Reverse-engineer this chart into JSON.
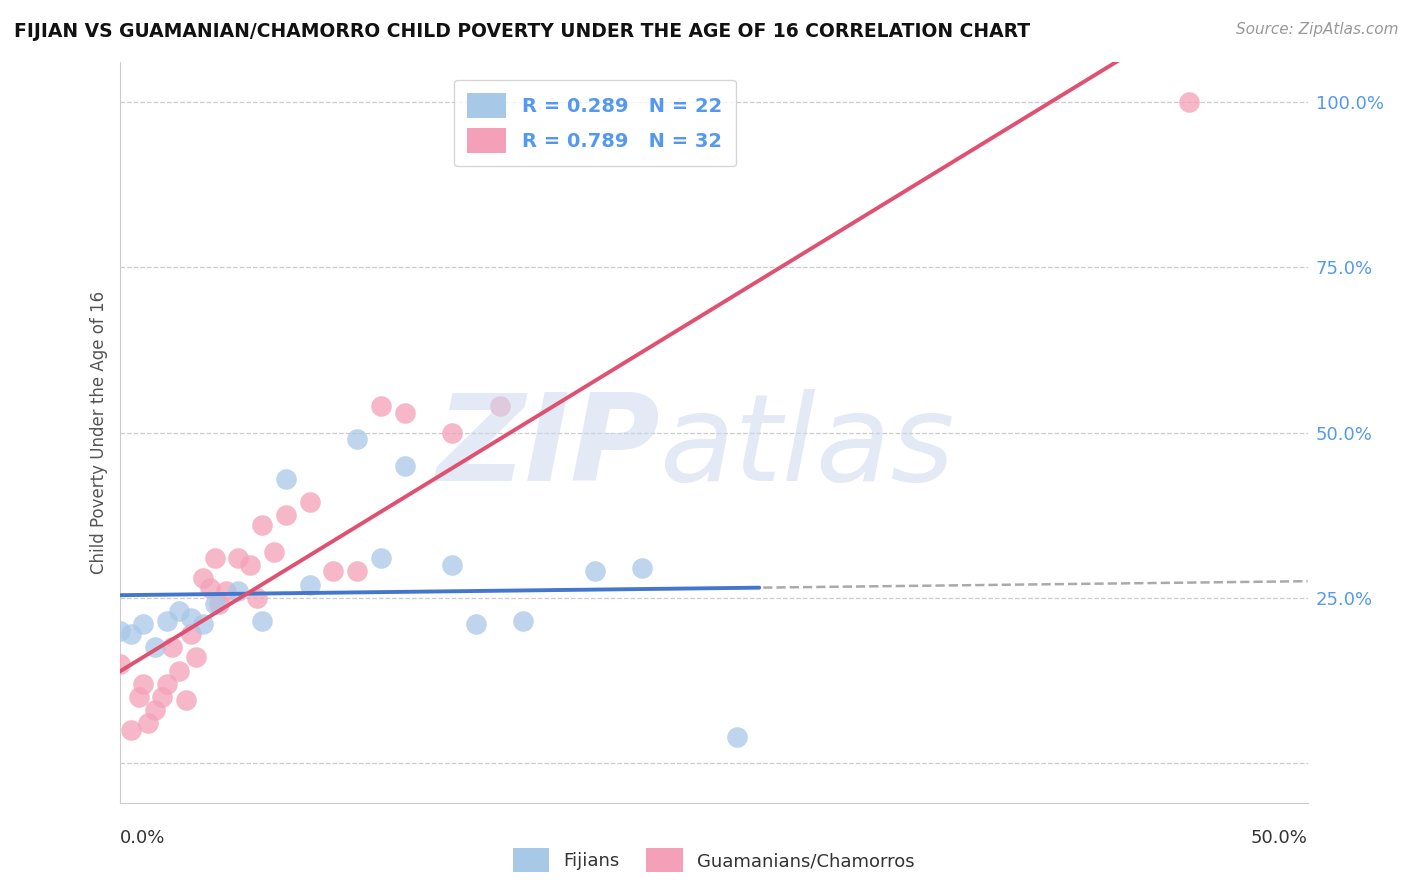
{
  "title": "FIJIAN VS GUAMANIAN/CHAMORRO CHILD POVERTY UNDER THE AGE OF 16 CORRELATION CHART",
  "source": "Source: ZipAtlas.com",
  "ylabel": "Child Poverty Under the Age of 16",
  "xlim": [
    0.0,
    0.5
  ],
  "ylim": [
    -0.06,
    1.06
  ],
  "yticks": [
    0.0,
    0.25,
    0.5,
    0.75,
    1.0
  ],
  "ytick_labels": [
    "",
    "25.0%",
    "50.0%",
    "75.0%",
    "100.0%"
  ],
  "fijian_R": "0.289",
  "fijian_N": "22",
  "guamanian_R": "0.789",
  "guamanian_N": "32",
  "fijian_color": "#a8c8e8",
  "guamanian_color": "#f4a0b8",
  "fijian_line_color": "#4477cc",
  "guamanian_line_color": "#e05070",
  "fijian_x": [
    0.0,
    0.005,
    0.01,
    0.015,
    0.02,
    0.025,
    0.03,
    0.035,
    0.04,
    0.05,
    0.06,
    0.07,
    0.08,
    0.1,
    0.11,
    0.12,
    0.14,
    0.15,
    0.17,
    0.2,
    0.22,
    0.26
  ],
  "fijian_y": [
    0.2,
    0.195,
    0.21,
    0.175,
    0.215,
    0.23,
    0.22,
    0.21,
    0.24,
    0.26,
    0.215,
    0.43,
    0.27,
    0.49,
    0.31,
    0.45,
    0.3,
    0.21,
    0.215,
    0.29,
    0.295,
    0.04
  ],
  "guamanian_x": [
    0.0,
    0.005,
    0.008,
    0.01,
    0.012,
    0.015,
    0.018,
    0.02,
    0.022,
    0.025,
    0.028,
    0.03,
    0.032,
    0.035,
    0.038,
    0.04,
    0.042,
    0.045,
    0.05,
    0.055,
    0.058,
    0.06,
    0.065,
    0.07,
    0.08,
    0.09,
    0.1,
    0.11,
    0.12,
    0.14,
    0.16,
    0.45
  ],
  "guamanian_y": [
    0.15,
    0.05,
    0.1,
    0.12,
    0.06,
    0.08,
    0.1,
    0.12,
    0.175,
    0.14,
    0.095,
    0.195,
    0.16,
    0.28,
    0.265,
    0.31,
    0.24,
    0.26,
    0.31,
    0.3,
    0.25,
    0.36,
    0.32,
    0.375,
    0.395,
    0.29,
    0.29,
    0.54,
    0.53,
    0.5,
    0.54,
    1.0
  ]
}
